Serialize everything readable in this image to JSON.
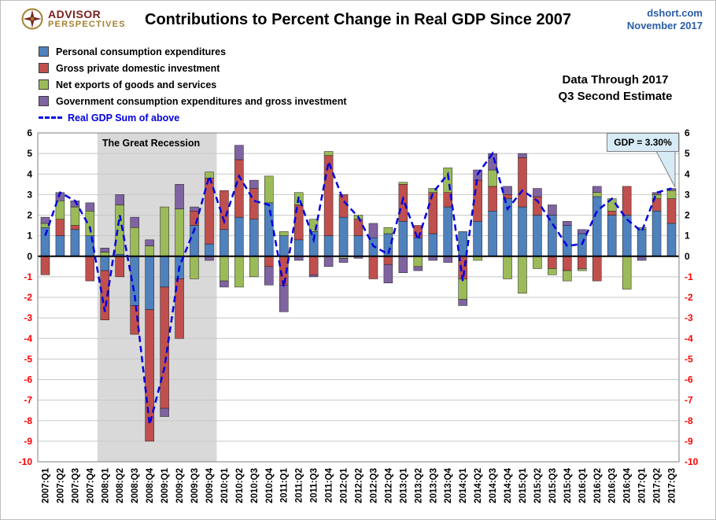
{
  "header": {
    "logo_line1": "ADVISOR",
    "logo_line2": "PERSPECTIVES",
    "title": "Contributions to Percent Change in Real GDP Since 2007",
    "source": "dshort.com",
    "date": "November 2017"
  },
  "annotations": {
    "data_through_line1": "Data Through 2017",
    "data_through_line2": "Q3 Second Estimate",
    "recession_label": "The Great Recession",
    "gdp_callout": "GDP = 3.30%"
  },
  "chart_data": {
    "type": "bar",
    "subtype": "stacked-bar-with-line",
    "title": "Contributions to Percent Change in Real GDP Since 2007",
    "xlabel": "",
    "ylabel": "",
    "ylim": [
      -10,
      6
    ],
    "ytick_step": 1,
    "grid": true,
    "legend_position": "top-left",
    "negative_tick_color": "#ff0000",
    "positive_tick_color": "#000000",
    "recession_band": {
      "start": "2008:Q1",
      "end": "2009:Q4",
      "color": "#d9d9d9",
      "label": "The Great Recession"
    },
    "categories": [
      "2007:Q1",
      "2007:Q2",
      "2007:Q3",
      "2007:Q4",
      "2008:Q1",
      "2008:Q2",
      "2008:Q3",
      "2008:Q4",
      "2009:Q1",
      "2009:Q2",
      "2009:Q3",
      "2009:Q4",
      "2010:Q1",
      "2010:Q2",
      "2010:Q3",
      "2010:Q4",
      "2011:Q1",
      "2011:Q2",
      "2011:Q3",
      "2011:Q4",
      "2012:Q1",
      "2012:Q2",
      "2012:Q3",
      "2012:Q4",
      "2013:Q1",
      "2013:Q2",
      "2013:Q3",
      "2013:Q4",
      "2014:Q1",
      "2014:Q2",
      "2014:Q3",
      "2014:Q4",
      "2015:Q1",
      "2015:Q2",
      "2015:Q3",
      "2015:Q4",
      "2016:Q1",
      "2016:Q2",
      "2016:Q3",
      "2016:Q4",
      "2017:Q1",
      "2017:Q2",
      "2017:Q3"
    ],
    "series": [
      {
        "name": "Personal consumption expenditures",
        "color": "#4f81bd",
        "values": [
          1.4,
          1.0,
          1.3,
          1.0,
          -0.7,
          0.1,
          -2.4,
          -2.6,
          -1.5,
          -1.1,
          1.5,
          0.6,
          1.3,
          1.9,
          1.8,
          2.6,
          1.0,
          0.8,
          1.2,
          1.0,
          1.9,
          1.0,
          0.9,
          1.1,
          1.7,
          0.9,
          1.1,
          2.4,
          1.2,
          1.7,
          2.2,
          2.8,
          2.4,
          2.0,
          2.0,
          1.5,
          1.1,
          2.9,
          2.0,
          2.0,
          1.3,
          2.2,
          1.6
        ]
      },
      {
        "name": "Gross private domestic investment",
        "color": "#c0504d",
        "values": [
          -0.9,
          0.8,
          0.2,
          -1.2,
          -2.4,
          -1.0,
          -1.4,
          -6.4,
          -5.9,
          -2.9,
          0.7,
          3.2,
          1.9,
          2.8,
          1.5,
          -0.5,
          -1.4,
          1.7,
          -0.9,
          3.9,
          1.1,
          0.8,
          -1.1,
          -0.4,
          1.8,
          0.6,
          2.0,
          0.7,
          -1.1,
          2.0,
          1.2,
          0.2,
          2.4,
          0.9,
          -0.6,
          -0.7,
          -0.6,
          -1.2,
          0.2,
          1.4,
          0.0,
          0.6,
          1.2
        ]
      },
      {
        "name": "Net exports of goods and services",
        "color": "#9bbb59",
        "values": [
          0.2,
          0.9,
          0.9,
          1.2,
          0.2,
          2.4,
          1.4,
          0.5,
          2.4,
          2.3,
          -1.1,
          0.3,
          -1.2,
          -1.5,
          -1.0,
          1.3,
          0.2,
          0.6,
          0.6,
          0.2,
          -0.1,
          0.2,
          0.0,
          0.3,
          0.1,
          -0.5,
          0.2,
          1.2,
          -1.0,
          -0.2,
          0.8,
          -1.1,
          -1.8,
          -0.6,
          -0.3,
          -0.5,
          -0.1,
          0.2,
          0.6,
          -1.6,
          0.1,
          0.2,
          0.4
        ]
      },
      {
        "name": "Government consumption expenditures and gross investment",
        "color": "#8064a2",
        "values": [
          0.3,
          0.4,
          0.3,
          0.4,
          0.2,
          0.5,
          0.5,
          0.3,
          -0.4,
          1.2,
          0.2,
          -0.2,
          -0.3,
          0.7,
          0.4,
          -0.9,
          -1.3,
          -0.2,
          -0.1,
          -0.5,
          -0.2,
          -0.1,
          0.7,
          -0.9,
          -0.8,
          -0.2,
          -0.2,
          -0.3,
          -0.3,
          0.5,
          0.8,
          0.4,
          0.2,
          0.4,
          0.5,
          0.2,
          0.2,
          0.3,
          0.0,
          0.0,
          -0.2,
          0.1,
          0.1
        ]
      }
    ],
    "line": {
      "name": "Real GDP Sum of above",
      "color": "#0000e0",
      "dashed": true,
      "values": [
        1.0,
        3.1,
        2.7,
        1.4,
        -2.7,
        2.0,
        -1.9,
        -8.2,
        -5.4,
        -0.5,
        1.3,
        3.9,
        1.7,
        3.9,
        2.7,
        2.5,
        -1.5,
        2.9,
        0.8,
        4.6,
        2.7,
        1.9,
        0.5,
        0.1,
        2.8,
        0.8,
        3.1,
        4.0,
        -1.2,
        4.0,
        5.0,
        2.3,
        3.2,
        2.7,
        1.6,
        0.5,
        0.6,
        2.2,
        2.8,
        1.8,
        1.2,
        3.1,
        3.3
      ]
    },
    "last_value_label": "GDP = 3.30%"
  }
}
